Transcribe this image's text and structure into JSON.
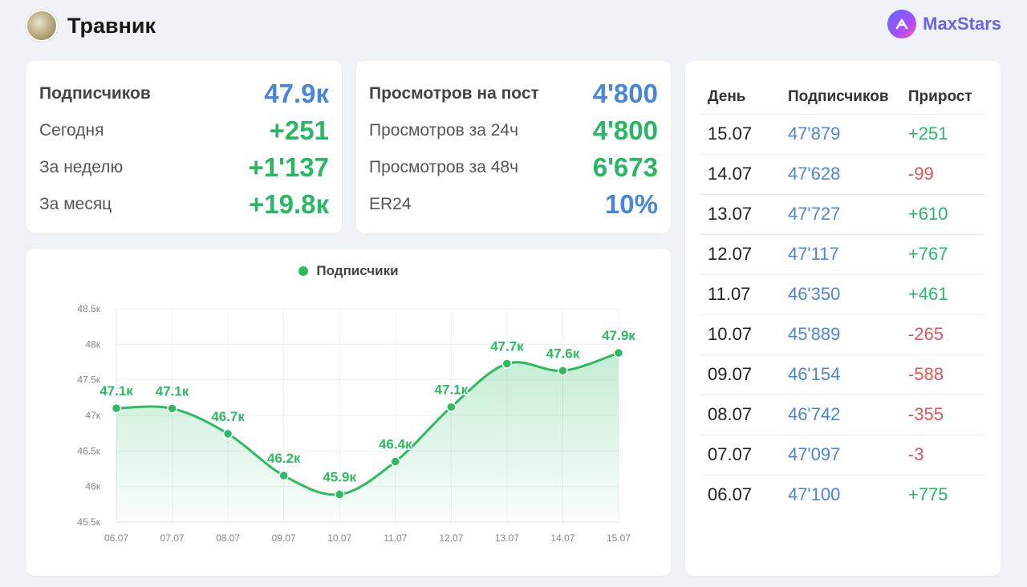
{
  "header": {
    "title": "Травник",
    "brand": "MaxStars"
  },
  "icons": {
    "avatar": "channel-avatar",
    "brand": "maxstars-logo-icon"
  },
  "colors": {
    "blue": "#4a86d4",
    "green": "#29b765",
    "red": "#e05555",
    "line": "#2dbb62"
  },
  "subscribers_card": {
    "rows": [
      {
        "label": "Подписчиков",
        "value": "47.9к"
      },
      {
        "label": "Сегодня",
        "value": "+251"
      },
      {
        "label": "За неделю",
        "value": "+1'137"
      },
      {
        "label": "За месяц",
        "value": "+19.8к"
      }
    ]
  },
  "views_card": {
    "rows": [
      {
        "label": "Просмотров на пост",
        "value": "4'800"
      },
      {
        "label": "Просмотров за 24ч",
        "value": "4'800"
      },
      {
        "label": "Просмотров за 48ч",
        "value": "6'673"
      },
      {
        "label": "ER24",
        "value": "10%"
      }
    ]
  },
  "table": {
    "headers": [
      "День",
      "Подписчиков",
      "Прирост"
    ],
    "rows": [
      [
        "15.07",
        "47'879",
        "+251"
      ],
      [
        "14.07",
        "47'628",
        "-99"
      ],
      [
        "13.07",
        "47'727",
        "+610"
      ],
      [
        "12.07",
        "47'117",
        "+767"
      ],
      [
        "11.07",
        "46'350",
        "+461"
      ],
      [
        "10.07",
        "45'889",
        "-265"
      ],
      [
        "09.07",
        "46'154",
        "-588"
      ],
      [
        "08.07",
        "46'742",
        "-355"
      ],
      [
        "07.07",
        "47'097",
        "-3"
      ],
      [
        "06.07",
        "47'100",
        "+775"
      ]
    ]
  },
  "chart_data": {
    "type": "area",
    "title": "",
    "legend_position": "top-center",
    "grid": true,
    "categories": [
      "06.07",
      "07.07",
      "08.07",
      "09.07",
      "10.07",
      "11.07",
      "12.07",
      "13.07",
      "14.07",
      "15.07"
    ],
    "series": [
      {
        "name": "Подписчики",
        "values": [
          47100,
          47097,
          46742,
          46154,
          45889,
          46350,
          47117,
          47727,
          47628,
          47879
        ],
        "labels": [
          "47.1к",
          "47.1к",
          "46.7к",
          "46.2к",
          "45.9к",
          "46.4к",
          "47.1к",
          "47.7к",
          "47.6к",
          "47.9к"
        ]
      }
    ],
    "ylim": [
      45500,
      48500
    ],
    "yticks": [
      45500,
      46000,
      46500,
      47000,
      47500,
      48000,
      48500
    ],
    "ytick_labels": [
      "45.5к",
      "46к",
      "46.5к",
      "47к",
      "47.5к",
      "48к",
      "48.5к"
    ],
    "xlabel": "",
    "ylabel": ""
  }
}
